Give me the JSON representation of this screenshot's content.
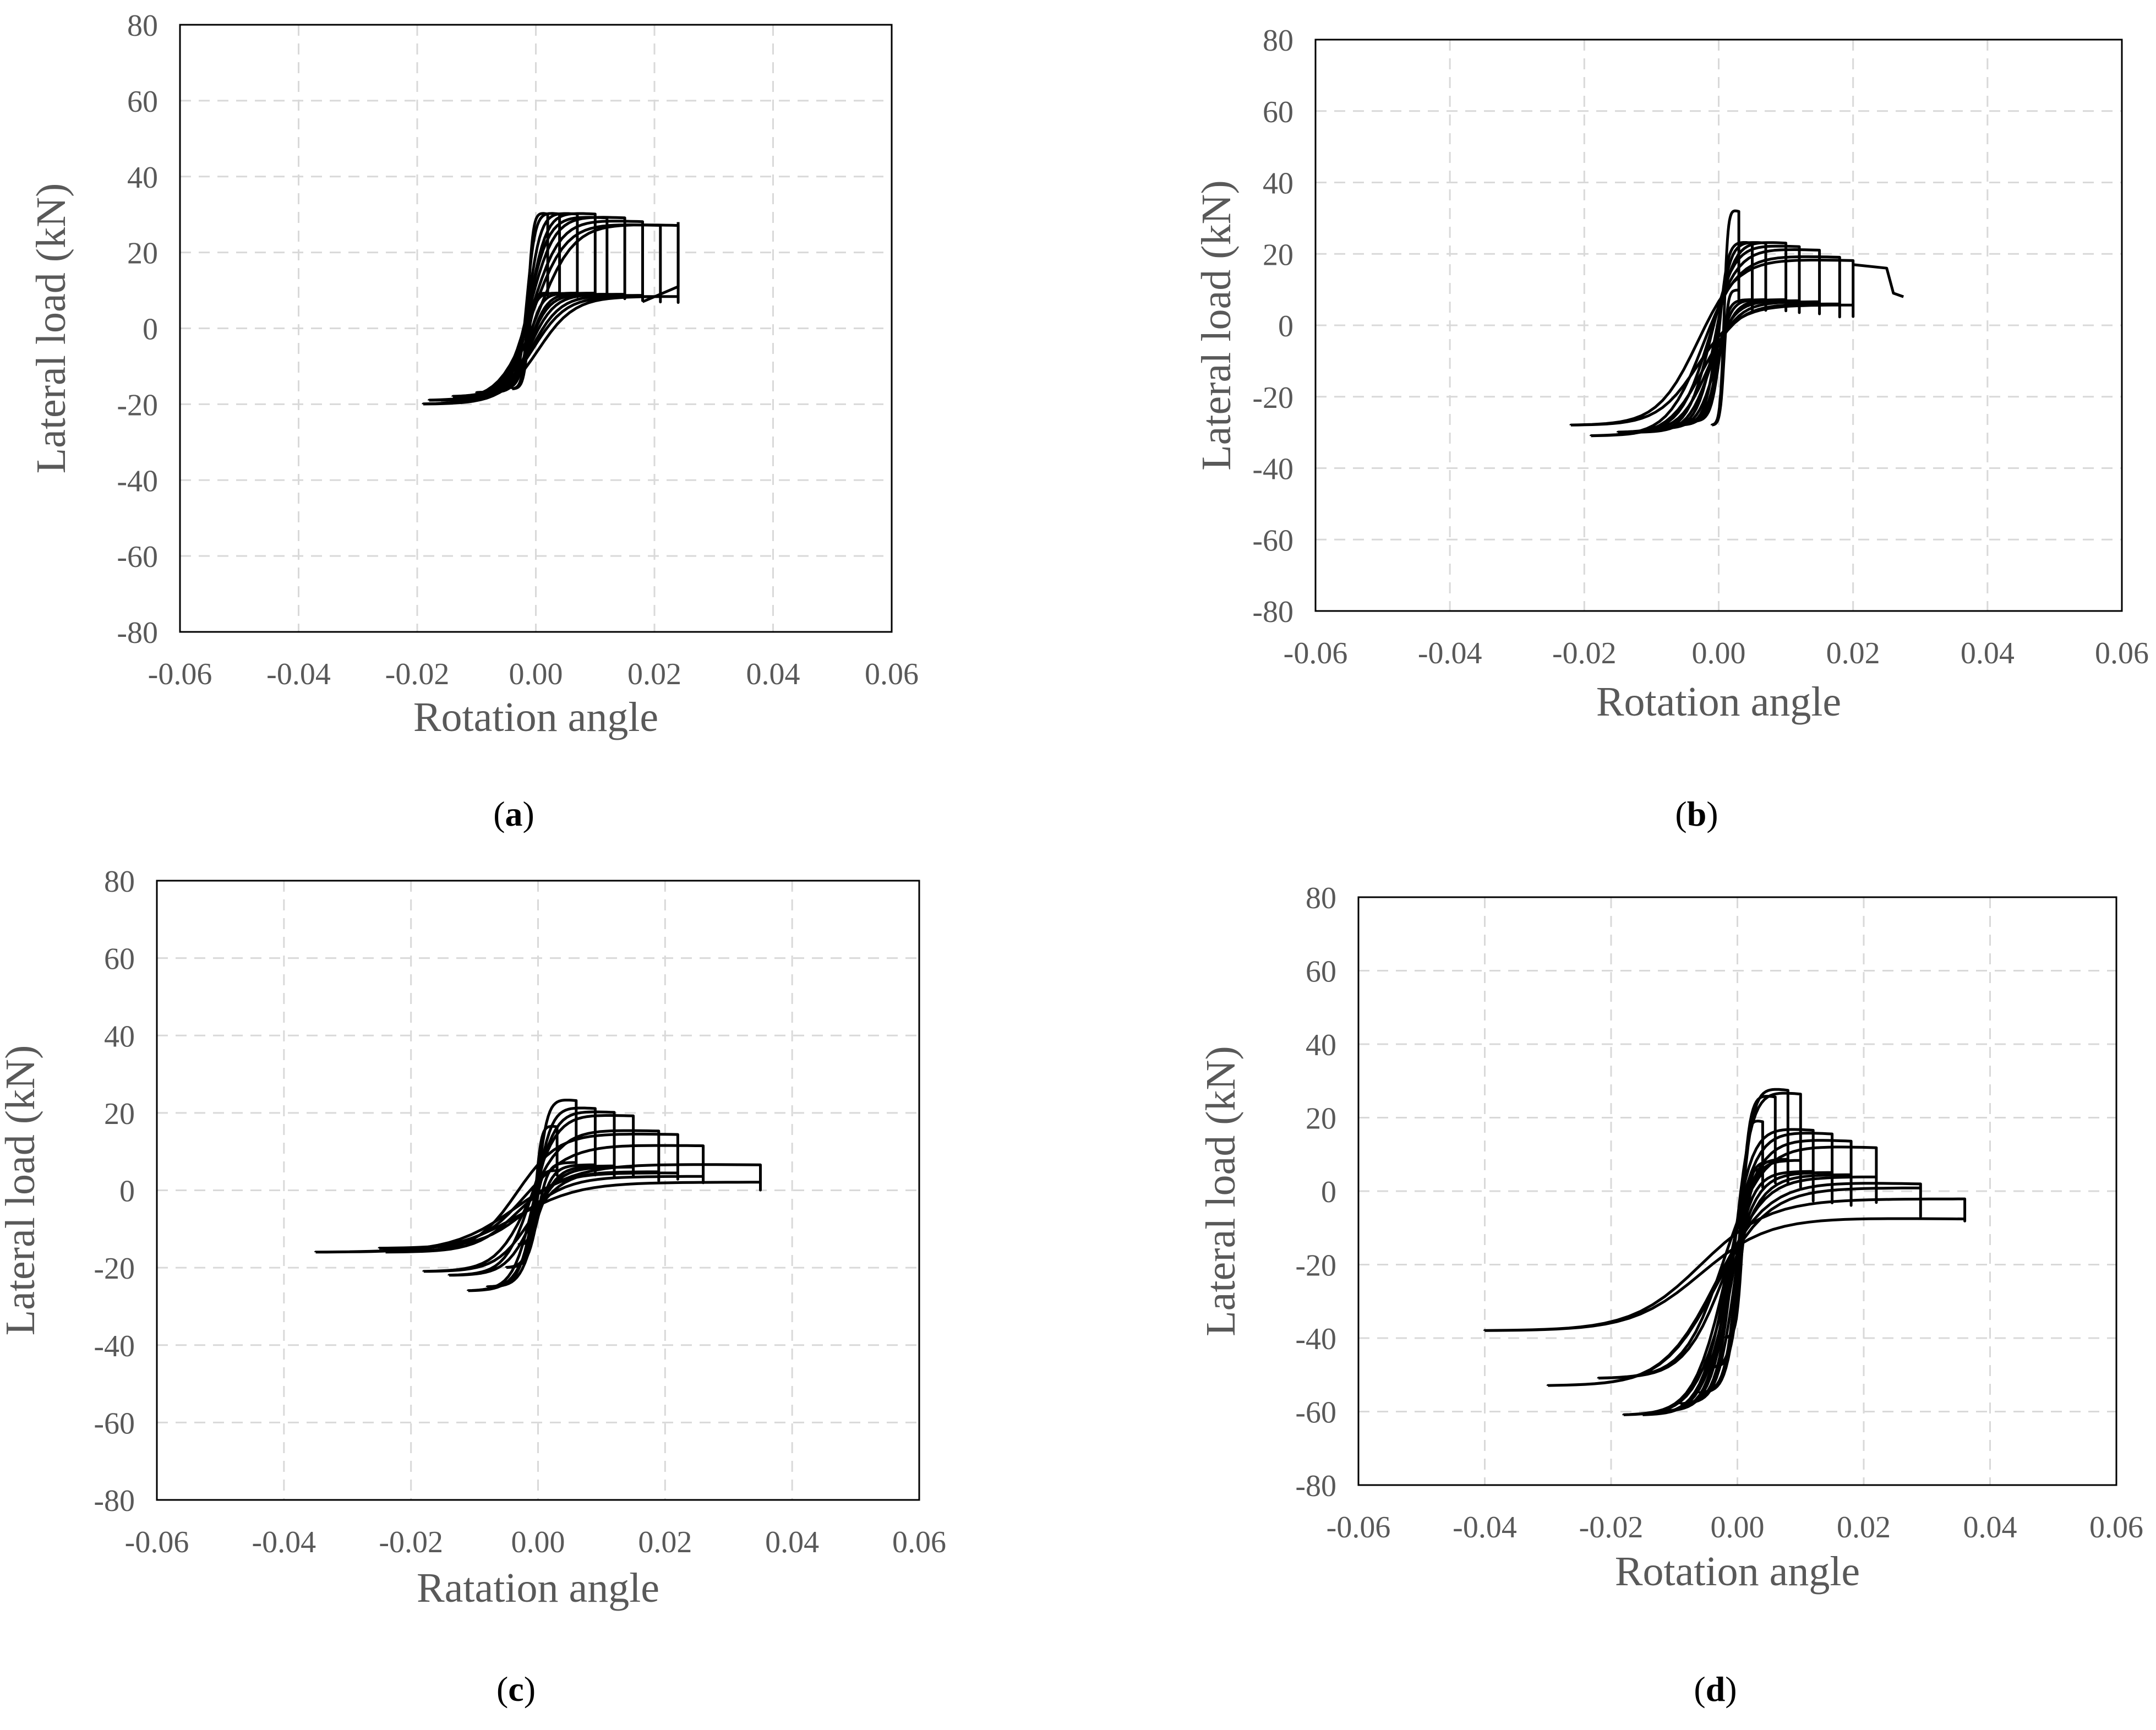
{
  "panels": [
    {
      "id": "a",
      "caption_letter": "a",
      "xlabel": "Rotation angle",
      "ylabel": "Lateral load (kN)"
    },
    {
      "id": "b",
      "caption_letter": "b",
      "xlabel": "Rotation angle",
      "ylabel": "Lateral load (kN)"
    },
    {
      "id": "c",
      "caption_letter": "c",
      "xlabel": "Ratation angle",
      "ylabel": "Lateral load (kN)"
    },
    {
      "id": "d",
      "caption_letter": "d",
      "xlabel": "Rotation angle",
      "ylabel": "Lateral load (kN)"
    }
  ],
  "chart_data": [
    {
      "type": "line",
      "xlabel": "Rotation angle",
      "ylabel": "Lateral load (kN)",
      "xlim": [
        -0.06,
        0.06
      ],
      "ylim": [
        -80,
        80
      ],
      "x_ticks": [
        "-0.06",
        "-0.04",
        "-0.02",
        "0.00",
        "0.02",
        "0.04",
        "0.06"
      ],
      "y_ticks": [
        "80",
        "60",
        "40",
        "20",
        "0",
        "-20",
        "-40",
        "-60",
        "-80"
      ],
      "grid": true,
      "loops": [
        {
          "x_min": -0.004,
          "x_max": 0.002,
          "y_min": -16,
          "y_max": 31
        },
        {
          "x_min": -0.006,
          "x_max": 0.004,
          "y_min": -16,
          "y_max": 31
        },
        {
          "x_min": -0.008,
          "x_max": 0.007,
          "y_min": -17,
          "y_max": 31
        },
        {
          "x_min": -0.01,
          "x_max": 0.01,
          "y_min": -17,
          "y_max": 31
        },
        {
          "x_min": -0.012,
          "x_max": 0.012,
          "y_min": -18,
          "y_max": 30
        },
        {
          "x_min": -0.014,
          "x_max": 0.015,
          "y_min": -18,
          "y_max": 30
        },
        {
          "x_min": -0.016,
          "x_max": 0.018,
          "y_min": -19,
          "y_max": 29
        },
        {
          "x_min": -0.018,
          "x_max": 0.021,
          "y_min": -19,
          "y_max": 28
        },
        {
          "x_min": -0.019,
          "x_max": 0.024,
          "y_min": -20,
          "y_max": 28
        }
      ],
      "final_point": [
        0.018,
        7
      ]
    },
    {
      "type": "line",
      "xlabel": "Rotation angle",
      "ylabel": "Lateral load (kN)",
      "xlim": [
        -0.06,
        0.06
      ],
      "ylim": [
        -80,
        80
      ],
      "x_ticks": [
        "-0.06",
        "-0.04",
        "-0.02",
        "0.00",
        "0.02",
        "0.04",
        "0.06"
      ],
      "y_ticks": [
        "80",
        "60",
        "40",
        "20",
        "0",
        "-20",
        "-40",
        "-60",
        "-80"
      ],
      "grid": true,
      "loops": [
        {
          "x_min": -0.001,
          "x_max": 0.003,
          "y_min": -28,
          "y_max": 33
        },
        {
          "x_min": -0.004,
          "x_max": 0.005,
          "y_min": -27,
          "y_max": 24
        },
        {
          "x_min": -0.006,
          "x_max": 0.007,
          "y_min": -28,
          "y_max": 24
        },
        {
          "x_min": -0.009,
          "x_max": 0.01,
          "y_min": -29,
          "y_max": 24
        },
        {
          "x_min": -0.012,
          "x_max": 0.012,
          "y_min": -30,
          "y_max": 23
        },
        {
          "x_min": -0.015,
          "x_max": 0.015,
          "y_min": -30,
          "y_max": 22
        },
        {
          "x_min": -0.019,
          "x_max": 0.018,
          "y_min": -31,
          "y_max": 20
        },
        {
          "x_min": -0.022,
          "x_max": 0.02,
          "y_min": -28,
          "y_max": 19
        }
      ],
      "final_branch": [
        [
          0.02,
          17
        ],
        [
          0.025,
          16
        ],
        [
          0.026,
          9
        ],
        [
          0.0275,
          8
        ]
      ]
    },
    {
      "type": "line",
      "xlabel": "Ratation angle",
      "ylabel": "Lateral load (kN)",
      "xlim": [
        -0.06,
        0.06
      ],
      "ylim": [
        -80,
        80
      ],
      "x_ticks": [
        "-0.06",
        "-0.04",
        "-0.02",
        "0.00",
        "0.02",
        "0.04",
        "0.06"
      ],
      "y_ticks": [
        "80",
        "60",
        "40",
        "20",
        "0",
        "-20",
        "-40",
        "-60",
        "-80"
      ],
      "grid": true,
      "loops": [
        {
          "x_min": -0.003,
          "x_max": 0.003,
          "y_min": -14,
          "y_max": 17
        },
        {
          "x_min": -0.005,
          "x_max": 0.006,
          "y_min": -20,
          "y_max": 24
        },
        {
          "x_min": -0.008,
          "x_max": 0.009,
          "y_min": -25,
          "y_max": 22
        },
        {
          "x_min": -0.011,
          "x_max": 0.012,
          "y_min": -26,
          "y_max": 21
        },
        {
          "x_min": -0.014,
          "x_max": 0.015,
          "y_min": -22,
          "y_max": 20
        },
        {
          "x_min": -0.018,
          "x_max": 0.019,
          "y_min": -21,
          "y_max": 16
        },
        {
          "x_min": -0.024,
          "x_max": 0.022,
          "y_min": -16,
          "y_max": 15
        },
        {
          "x_min": -0.025,
          "x_max": 0.026,
          "y_min": -15,
          "y_max": 12
        },
        {
          "x_min": -0.035,
          "x_max": 0.035,
          "y_min": -16,
          "y_max": 7
        }
      ]
    },
    {
      "type": "line",
      "xlabel": "Rotation angle",
      "ylabel": "Lateral load (kN)",
      "xlim": [
        -0.06,
        0.06
      ],
      "ylim": [
        -80,
        80
      ],
      "x_ticks": [
        "-0.06",
        "-0.04",
        "-0.02",
        "0.00",
        "0.02",
        "0.04",
        "0.06"
      ],
      "y_ticks": [
        "80",
        "60",
        "40",
        "20",
        "0",
        "-20",
        "-40",
        "-60",
        "-80"
      ],
      "grid": true,
      "loops": [
        {
          "x_min": -0.002,
          "x_max": 0.004,
          "y_min": -40,
          "y_max": 20
        },
        {
          "x_min": -0.004,
          "x_max": 0.006,
          "y_min": -48,
          "y_max": 27
        },
        {
          "x_min": -0.006,
          "x_max": 0.008,
          "y_min": -55,
          "y_max": 29
        },
        {
          "x_min": -0.009,
          "x_max": 0.01,
          "y_min": -58,
          "y_max": 28
        },
        {
          "x_min": -0.012,
          "x_max": 0.012,
          "y_min": -60,
          "y_max": 18
        },
        {
          "x_min": -0.015,
          "x_max": 0.015,
          "y_min": -61,
          "y_max": 17
        },
        {
          "x_min": -0.018,
          "x_max": 0.018,
          "y_min": -61,
          "y_max": 15
        },
        {
          "x_min": -0.022,
          "x_max": 0.022,
          "y_min": -51,
          "y_max": 13
        },
        {
          "x_min": -0.03,
          "x_max": 0.029,
          "y_min": -53,
          "y_max": 3
        },
        {
          "x_min": -0.04,
          "x_max": 0.036,
          "y_min": -38,
          "y_max": -7
        }
      ]
    }
  ]
}
